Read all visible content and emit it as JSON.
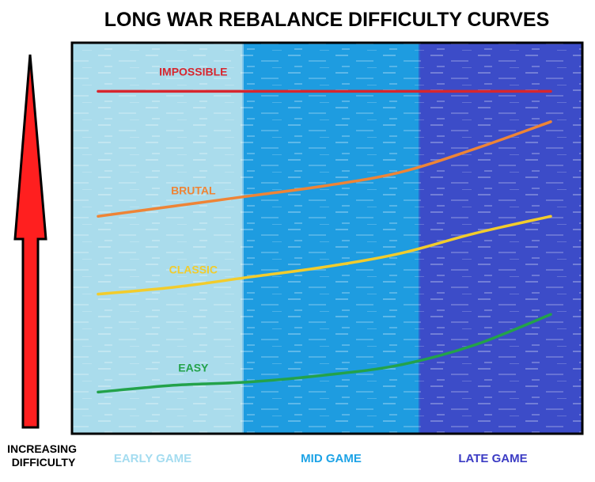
{
  "chart_data": {
    "type": "line",
    "title": "LONG WAR REBALANCE DIFFICULTY CURVES",
    "ylabel": "INCREASING DIFFICULTY",
    "xlabel": "",
    "categories": [
      "EARLY GAME",
      "MID GAME",
      "LATE GAME"
    ],
    "x": [
      0,
      1,
      2,
      3,
      4,
      5,
      6
    ],
    "xlim": [
      0,
      6
    ],
    "ylim": [
      0,
      100
    ],
    "grid": false,
    "legend": "none",
    "series": [
      {
        "name": "IMPOSSIBLE",
        "color": "#d7262e",
        "values": [
          95,
          95,
          95,
          95,
          95,
          95,
          95
        ]
      },
      {
        "name": "BRUTAL",
        "color": "#ee8436",
        "values": [
          58,
          61,
          64,
          67,
          71,
          78,
          86
        ]
      },
      {
        "name": "CLASSIC",
        "color": "#f2cc2c",
        "values": [
          35,
          37,
          40,
          43,
          47,
          53,
          58
        ]
      },
      {
        "name": "EASY",
        "color": "#23a24a",
        "values": [
          6,
          8,
          9,
          11,
          14,
          20,
          29
        ]
      }
    ],
    "phase_colors": [
      "#aadcec",
      "#1e9ce0",
      "#3c4cc8"
    ],
    "phase_label_colors": [
      "#a4dcf0",
      "#1da3e6",
      "#3c3cc4"
    ]
  }
}
